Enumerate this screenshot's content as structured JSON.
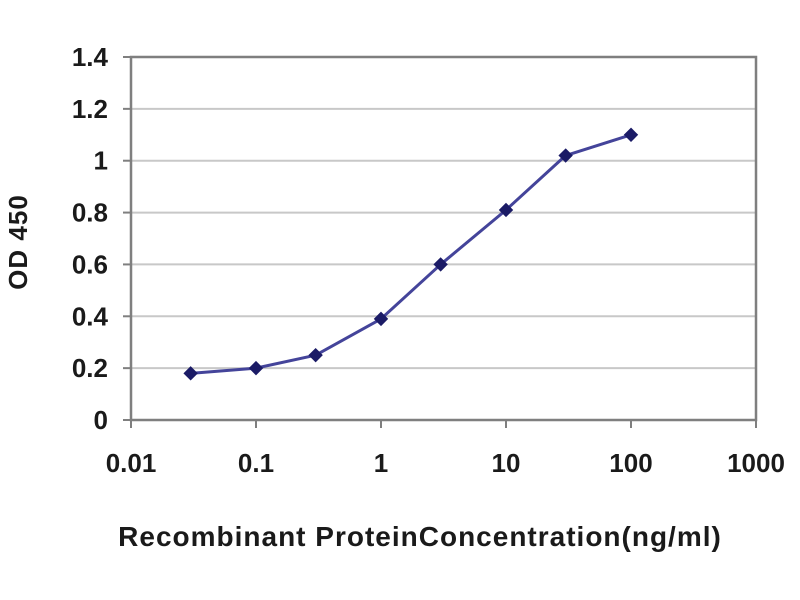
{
  "chart": {
    "y_axis_title": "OD 450",
    "x_axis_title": "Recombinant ProteinConcentration(ng/ml)",
    "x_tick_labels": [
      "0.01",
      "0.1",
      "1",
      "10",
      "100",
      "1000"
    ],
    "y_tick_labels": [
      "0",
      "0.2",
      "0.4",
      "0.6",
      "0.8",
      "1",
      "1.2",
      "1.4"
    ]
  },
  "chart_data": {
    "type": "line",
    "title": "",
    "xlabel": "Recombinant ProteinConcentration(ng/ml)",
    "ylabel": "OD 450",
    "x": [
      0.03,
      0.1,
      0.3,
      1,
      3,
      10,
      30,
      100
    ],
    "y": [
      0.18,
      0.2,
      0.25,
      0.39,
      0.6,
      0.81,
      1.02,
      1.1
    ],
    "x_scale": "log",
    "xlim": [
      0.01,
      1000
    ],
    "ylim": [
      0,
      1.4
    ],
    "y_tick_step": 0.2,
    "grid": true,
    "legend": false,
    "marker": "diamond",
    "colors": {
      "line": "#44449a",
      "marker": "#1b1b66",
      "gridline": "#c8c8c8",
      "frame": "#7f7f7f",
      "text": "#1a1a1a"
    }
  }
}
